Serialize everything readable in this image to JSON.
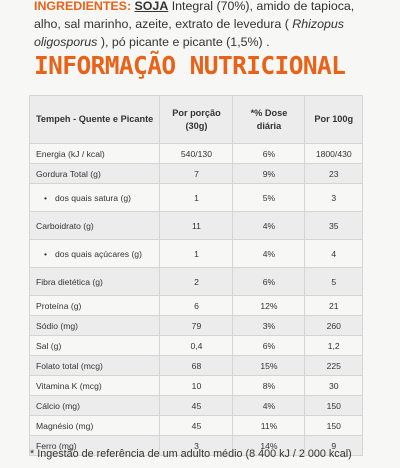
{
  "ingredients": {
    "label": "INGREDIENTES:",
    "soja": "SOJA",
    "part1": " Integral (70%), amido de tapioca, alho, sal marinho, azeite, extrato de levedura ( ",
    "italic": "Rhizopus oligosporus",
    "part2": " ), pó picante e picante (1,5%) ."
  },
  "title": "INFORMAÇÃO NUTRICIONAL",
  "table": {
    "headers": [
      "Tempeh - Quente e Picante",
      "Por porção (30g)",
      "*% Dose diária",
      "Por 100g"
    ],
    "rows": [
      [
        "Energia (kJ / kcal)",
        "540/130",
        "6%",
        "1800/430"
      ],
      [
        "Gordura Total (g)",
        "7",
        "9%",
        "23"
      ],
      [
        "dos quais satura (g)",
        "1",
        "5%",
        "3"
      ],
      [
        "Carboidrato (g)",
        "11",
        "4%",
        "35"
      ],
      [
        "dos quais açúcares (g)",
        "1",
        "4%",
        "4"
      ],
      [
        "Fibra dietética (g)",
        "2",
        "6%",
        "5"
      ],
      [
        "Proteína (g)",
        "6",
        "12%",
        "21"
      ],
      [
        "Sódio (mg)",
        "79",
        "3%",
        "260"
      ],
      [
        "Sal (g)",
        "0,4",
        "6%",
        "1,2"
      ],
      [
        "Folato total (mcg)",
        "68",
        "15%",
        "225"
      ],
      [
        "Vitamina K (mcg)",
        "10",
        "8%",
        "30"
      ],
      [
        "Cálcio (mg)",
        "45",
        "4%",
        "150"
      ],
      [
        "Magnésio (mg)",
        "45",
        "11%",
        "150"
      ],
      [
        "Ferro (mg)",
        "3",
        "14%",
        "9"
      ]
    ]
  },
  "footnote": "* Ingestão de referência de um adulto médio (8 400 kJ / 2 000 kcal)"
}
